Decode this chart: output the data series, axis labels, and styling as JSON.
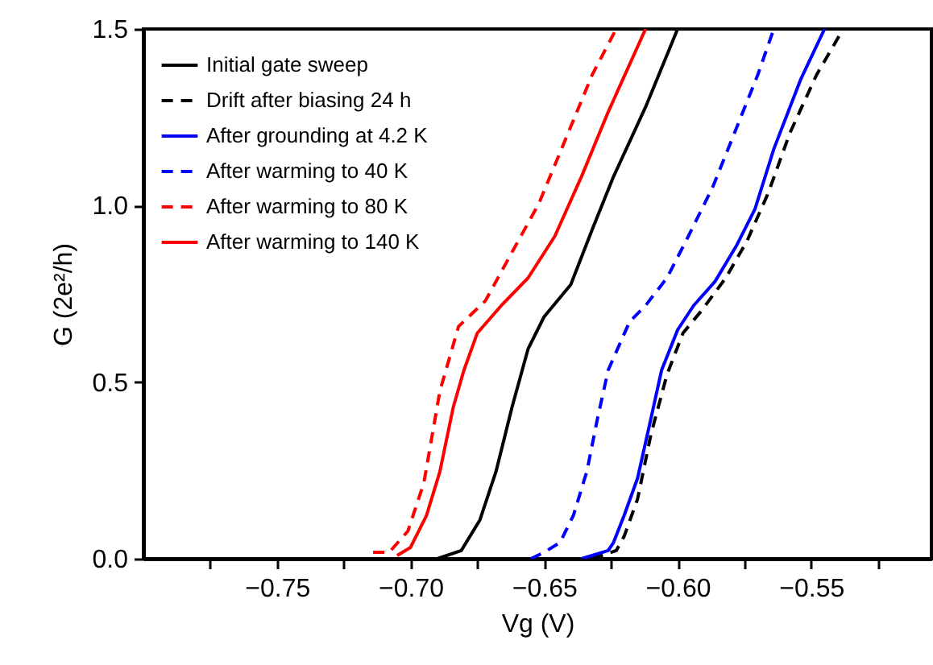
{
  "chart_data": {
    "type": "line",
    "xlabel": "Vg (V)",
    "ylabel": "G (2e²/h)",
    "xlim": [
      -0.8,
      -0.505
    ],
    "ylim": [
      0,
      1.5
    ],
    "xticks": [
      {
        "value": -0.775,
        "label": null
      },
      {
        "value": -0.75,
        "label": "−0.75"
      },
      {
        "value": -0.725,
        "label": null
      },
      {
        "value": -0.7,
        "label": "−0.70"
      },
      {
        "value": -0.675,
        "label": null
      },
      {
        "value": -0.65,
        "label": "−0.65"
      },
      {
        "value": -0.625,
        "label": null
      },
      {
        "value": -0.6,
        "label": "−0.60"
      },
      {
        "value": -0.575,
        "label": null
      },
      {
        "value": -0.55,
        "label": "−0.55"
      },
      {
        "value": -0.525,
        "label": null
      }
    ],
    "yticks": [
      {
        "value": 0,
        "label": "0.0"
      },
      {
        "value": 0.5,
        "label": "0.5"
      },
      {
        "value": 1.0,
        "label": "1.0"
      },
      {
        "value": 1.5,
        "label": "1.5"
      }
    ],
    "legend": "top left",
    "series": [
      {
        "name": "Initial gate sweep",
        "color": "#000000",
        "line_style": "solid",
        "x": [
          -0.69,
          -0.681,
          -0.674,
          -0.668,
          -0.662,
          -0.656,
          -0.65,
          -0.64,
          -0.632,
          -0.624,
          -0.612,
          -0.6
        ],
        "values": [
          0,
          0.023,
          0.11,
          0.247,
          0.429,
          0.594,
          0.685,
          0.776,
          0.932,
          1.082,
          1.279,
          1.5
        ]
      },
      {
        "name": "Drift after biasing 24 h",
        "color": "#000000",
        "line_style": "dashed",
        "x": [
          -0.632,
          -0.623,
          -0.62,
          -0.615,
          -0.61,
          -0.604,
          -0.598,
          -0.591,
          -0.582,
          -0.574,
          -0.566,
          -0.558,
          -0.548,
          -0.538
        ],
        "values": [
          0,
          0.023,
          0.064,
          0.169,
          0.352,
          0.521,
          0.639,
          0.703,
          0.795,
          0.9,
          1.037,
          1.205,
          1.37,
          1.5
        ]
      },
      {
        "name": "After grounding at 4.2 K",
        "color": "#0000ff",
        "line_style": "solid",
        "x": [
          -0.636,
          -0.626,
          -0.624,
          -0.62,
          -0.615,
          -0.61,
          -0.606,
          -0.6,
          -0.594,
          -0.586,
          -0.578,
          -0.571,
          -0.564,
          -0.554,
          -0.545
        ],
        "values": [
          0,
          0.023,
          0.046,
          0.123,
          0.228,
          0.397,
          0.534,
          0.648,
          0.717,
          0.785,
          0.886,
          0.991,
          1.16,
          1.356,
          1.5
        ]
      },
      {
        "name": "After warming to 40 K",
        "color": "#0000ff",
        "line_style": "dashed",
        "x": [
          -0.655,
          -0.65,
          -0.644,
          -0.639,
          -0.634,
          -0.63,
          -0.626,
          -0.618,
          -0.612,
          -0.604,
          -0.596,
          -0.587,
          -0.578,
          -0.57,
          -0.564
        ],
        "values": [
          0,
          0.018,
          0.046,
          0.123,
          0.247,
          0.397,
          0.534,
          0.671,
          0.717,
          0.795,
          0.913,
          1.05,
          1.219,
          1.37,
          1.5
        ]
      },
      {
        "name": "After warming to 80 K",
        "color": "#ff0000",
        "line_style": "dashed",
        "x": [
          -0.714,
          -0.708,
          -0.701,
          -0.695,
          -0.689,
          -0.682,
          -0.672,
          -0.662,
          -0.652,
          -0.642,
          -0.632,
          -0.623
        ],
        "values": [
          0.018,
          0.018,
          0.078,
          0.215,
          0.475,
          0.658,
          0.73,
          0.868,
          1.005,
          1.187,
          1.37,
          1.5
        ]
      },
      {
        "name": "After warming to 140 K",
        "color": "#ff0000",
        "line_style": "solid",
        "x": [
          -0.705,
          -0.7,
          -0.694,
          -0.689,
          -0.684,
          -0.68,
          -0.675,
          -0.666,
          -0.656,
          -0.646,
          -0.636,
          -0.626,
          -0.612
        ],
        "values": [
          0.009,
          0.032,
          0.123,
          0.247,
          0.429,
          0.534,
          0.639,
          0.717,
          0.795,
          0.913,
          1.082,
          1.265,
          1.5
        ]
      }
    ]
  }
}
